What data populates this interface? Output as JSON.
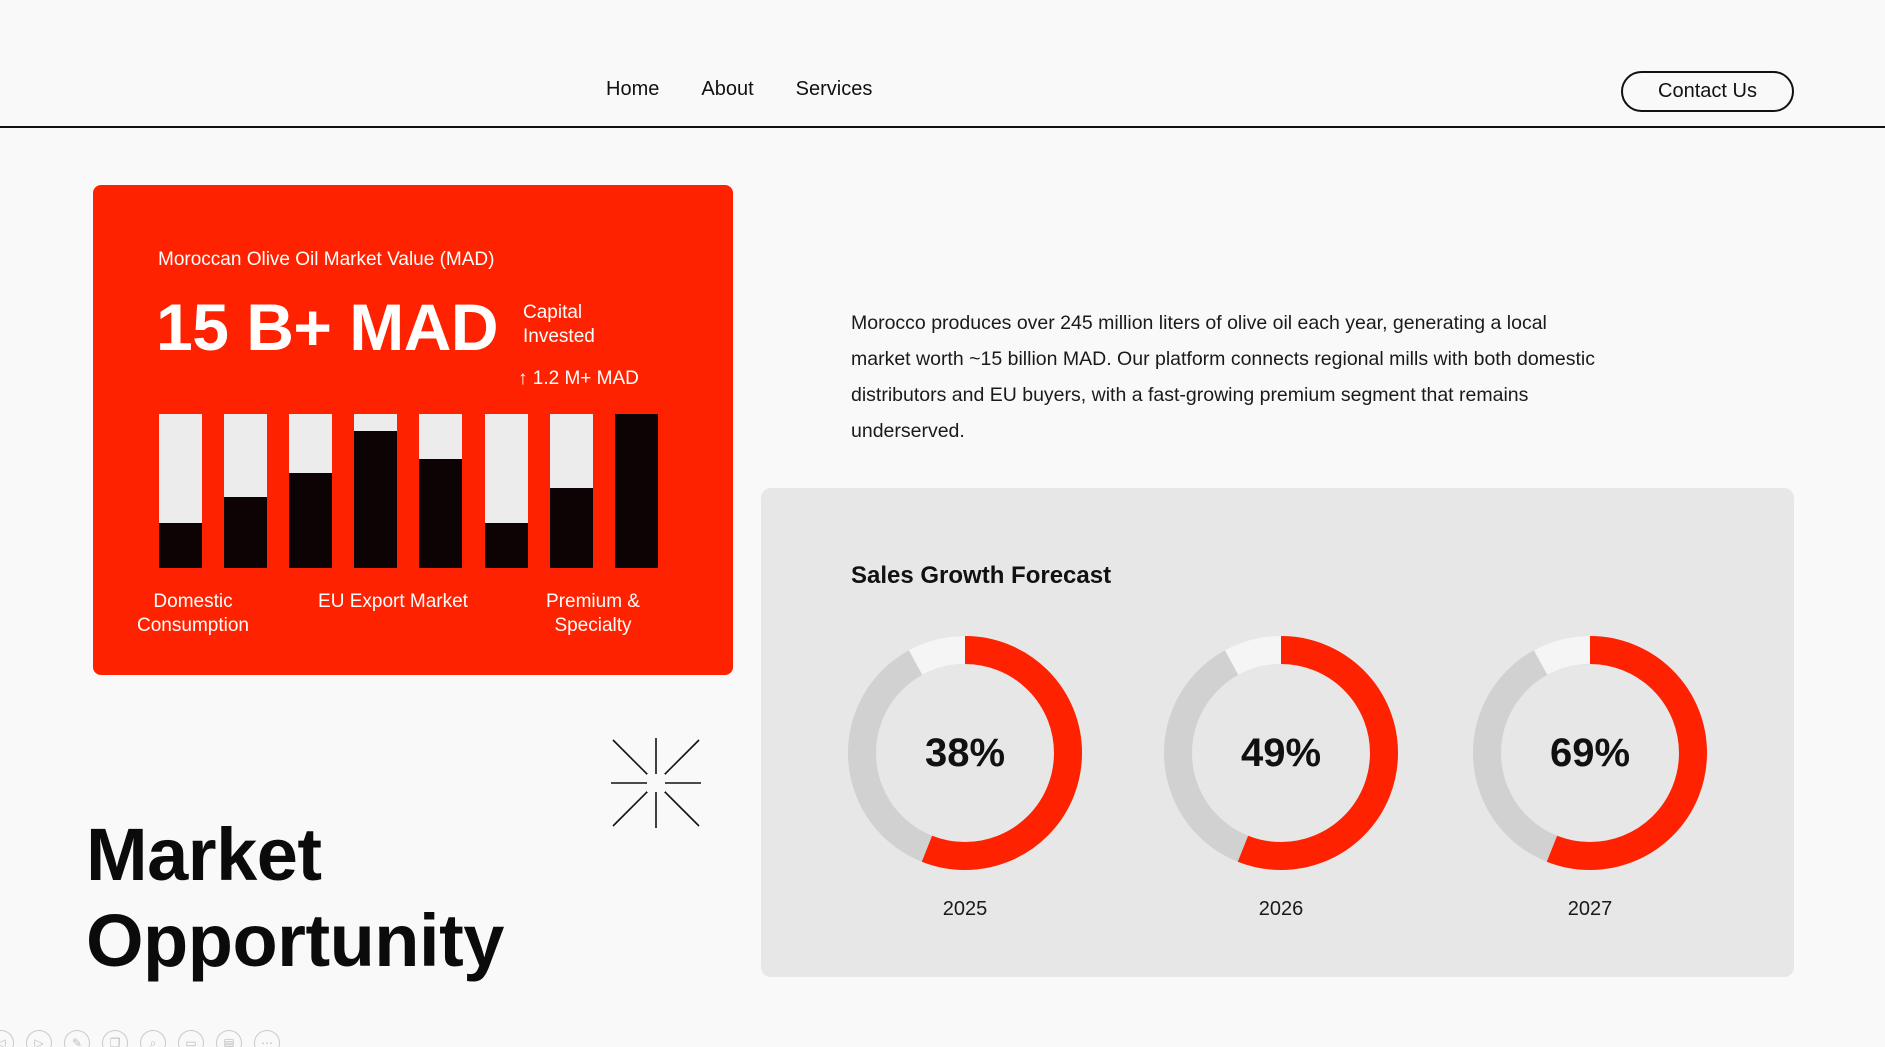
{
  "nav": {
    "links": [
      "Home",
      "About",
      "Services"
    ],
    "contact_label": "Contact Us"
  },
  "card": {
    "label": "Moroccan Olive Oil Market Value (MAD)",
    "value": "15 B+ MAD",
    "sub_label": "Capital Invested",
    "delta": "↑ 1.2 M+ MAD",
    "colors": {
      "background": "#ff2200",
      "track": "#ececec",
      "fill": "#0d0304"
    }
  },
  "chart_data": {
    "type": "bar",
    "values": [
      0.29,
      0.46,
      0.62,
      0.89,
      0.71,
      0.29,
      0.52,
      1.0
    ],
    "ylim": [
      0,
      1
    ],
    "category_labels": [
      "Domestic Consumption",
      "EU Export Market",
      "Premium & Specialty"
    ]
  },
  "page_title": "Market Opportunity",
  "description": "Morocco produces over 245 million liters of olive oil each year, generating a local market worth ~15 billion MAD. Our platform connects regional mills with both domestic distributors and EU buyers, with a fast-growing premium segment that remains underserved.",
  "forecast": {
    "title": "Sales Growth Forecast",
    "items": [
      {
        "percent_label": "38%",
        "year": "2025",
        "percent": 38
      },
      {
        "percent_label": "49%",
        "year": "2026",
        "percent": 49
      },
      {
        "percent_label": "69%",
        "year": "2027",
        "percent": 69
      }
    ],
    "colors": {
      "accent": "#ff2200",
      "track": "#d1d1d1",
      "light": "#f5f5f5"
    }
  },
  "toolbar_icons": [
    "prev-icon",
    "play-icon",
    "pen-icon",
    "copy-icon",
    "zoom-icon",
    "window-icon",
    "subtitle-icon",
    "more-icon"
  ]
}
